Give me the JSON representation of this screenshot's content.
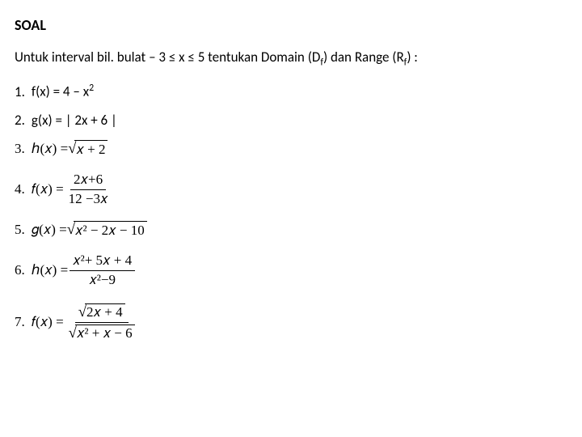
{
  "title": "SOAL",
  "interval": {
    "prefix": "Untuk interval bil. bulat  ",
    "range": "– 3 ≤ x ≤  5",
    "suffix1": "  tentukan Domain (D",
    "sub1": "f",
    "suffix2": ") dan Range (R",
    "sub2": "f",
    "suffix3": ") :"
  },
  "problems": {
    "p1": {
      "num": "1.",
      "lhs": "f(x) = 4 – x",
      "sup": "2"
    },
    "p2": {
      "num": "2.",
      "expr": "g(x) = | 2x + 6 |"
    },
    "p3": {
      "num": "3.",
      "lhs": "ℎ(𝑥) = ",
      "radicand": "𝑥 + 2"
    },
    "p4": {
      "num": "4.",
      "lhs": "𝑓(𝑥) = ",
      "numer": "2𝑥+6",
      "denom": "12 −3𝑥"
    },
    "p5": {
      "num": "5.",
      "lhs": "𝑔(𝑥) = ",
      "radicand": "𝑥² − 2𝑥  − 10"
    },
    "p6": {
      "num": "6.",
      "lhs": "ℎ(𝑥) = ",
      "numer": "𝑥²+ 5𝑥 + 4",
      "denom": "𝑥²−9"
    },
    "p7": {
      "num": "7.",
      "lhs": "𝑓(𝑥) = ",
      "numer_rad": "2𝑥 + 4",
      "denom_rad": "𝑥² + 𝑥  − 6"
    }
  },
  "style": {
    "font_color": "#000000",
    "background": "#ffffff",
    "title_fontsize": 18,
    "body_fontsize": 17,
    "font_family": "Calibri",
    "math_font": "Cambria Math"
  }
}
